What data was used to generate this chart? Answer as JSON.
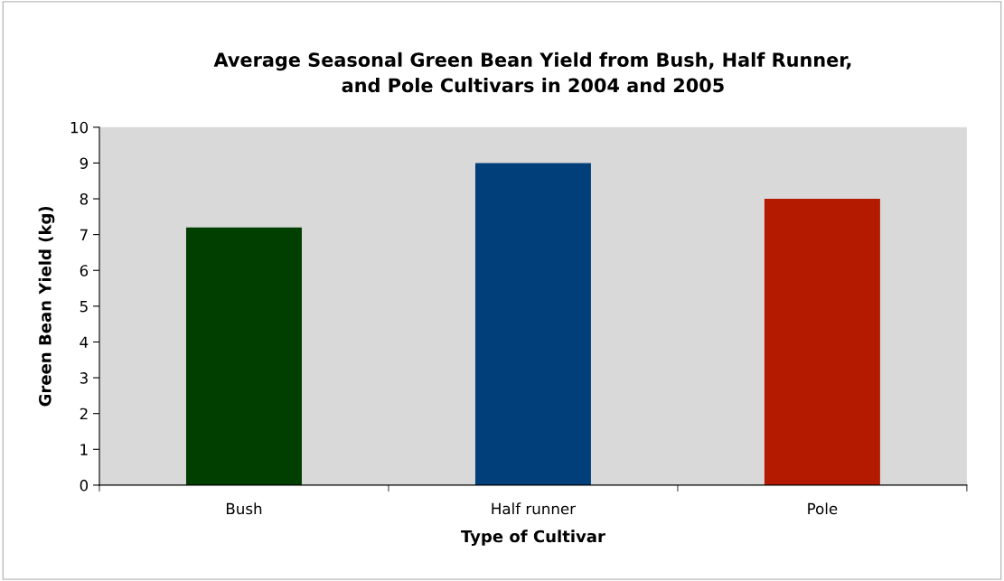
{
  "chart_data": {
    "type": "bar",
    "title": "Average Seasonal Green Bean Yield from Bush, Half Runner,\nand Pole Cultivars in 2004 and 2005",
    "xlabel": "Type of Cultivar",
    "ylabel": "Green Bean Yield (kg)",
    "categories": [
      "Bush",
      "Half runner",
      "Pole"
    ],
    "values": [
      7.2,
      9.0,
      8.0
    ],
    "colors": [
      "#003f00",
      "#003f7a",
      "#b31a00"
    ],
    "ylim": [
      0,
      10
    ],
    "yticks": [
      0,
      1,
      2,
      3,
      4,
      5,
      6,
      7,
      8,
      9,
      10
    ],
    "grid": false
  }
}
